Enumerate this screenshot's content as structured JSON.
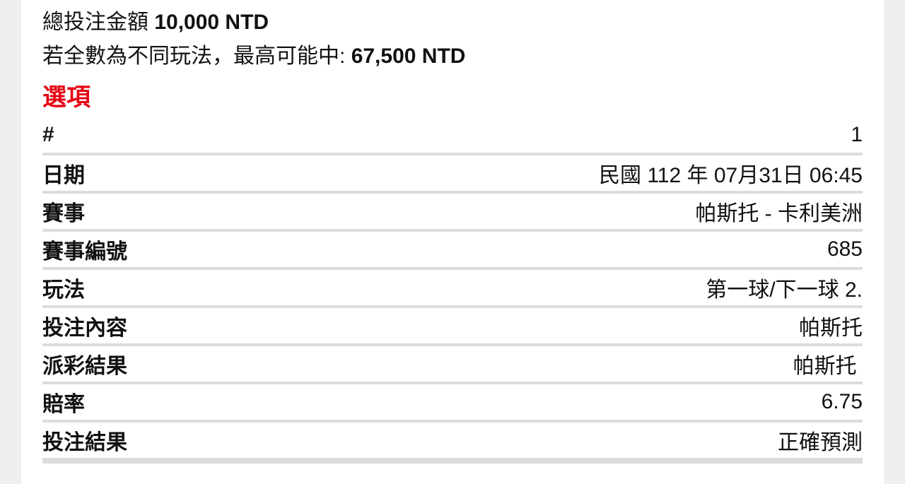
{
  "summary": {
    "total_label": "總投注金額",
    "total_value": "10,000 NTD",
    "max_label": "若全數為不同玩法，最高可能中:",
    "max_value": "67,500 NTD"
  },
  "section_title": "選項",
  "details": [
    {
      "label": "#",
      "value": "1"
    },
    {
      "label": "日期",
      "value": "民國 112 年 07月31日 06:45"
    },
    {
      "label": "賽事",
      "value": "帕斯托 - 卡利美洲"
    },
    {
      "label": "賽事編號",
      "value": "685"
    },
    {
      "label": "玩法",
      "value": "第一球/下一球 2."
    },
    {
      "label": "投注內容",
      "value": "帕斯托"
    },
    {
      "label": "派彩結果",
      "value": "帕斯托 "
    },
    {
      "label": "賠率",
      "value": "6.75"
    },
    {
      "label": "投注結果",
      "value": "正確預測"
    }
  ],
  "colors": {
    "section_title": "#e60012",
    "divider": "#dcdcdc",
    "background": "#efefef"
  }
}
